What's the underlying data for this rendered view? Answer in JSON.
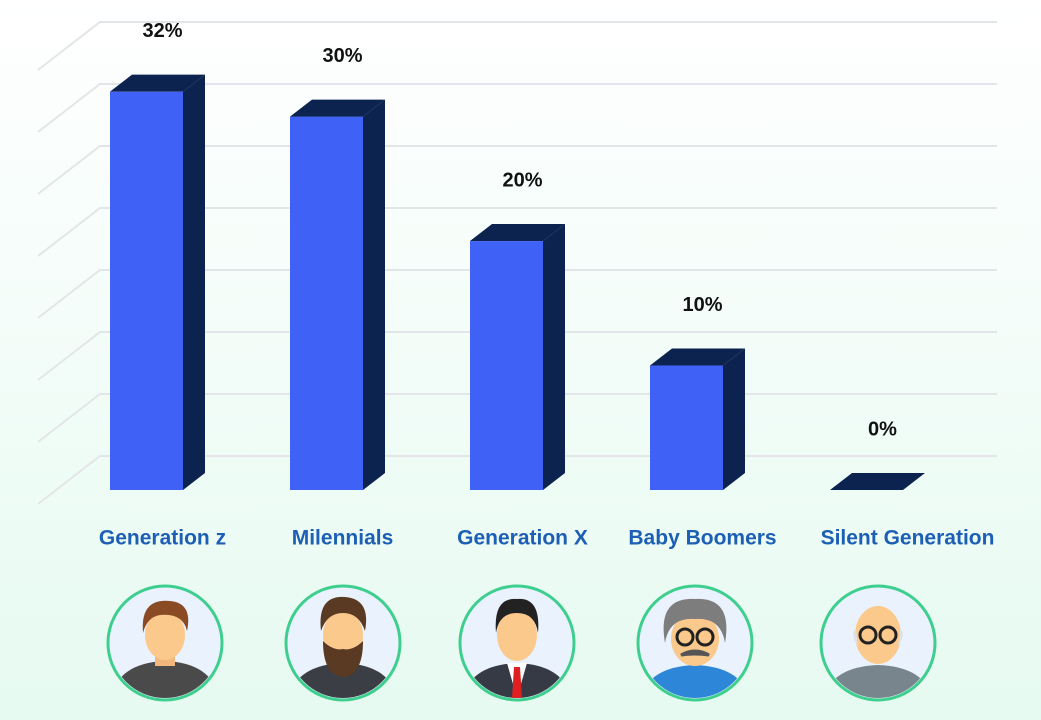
{
  "chart_data": {
    "type": "bar3d",
    "categories": [
      "Generation z",
      "Milennials",
      "Generation X",
      "Baby Boomers",
      "Silent Generation"
    ],
    "values": [
      32,
      30,
      20,
      10,
      0
    ],
    "value_labels": [
      "32%",
      "30%",
      "20%",
      "10%",
      "0%"
    ],
    "ylim": [
      0,
      38
    ],
    "color": "#4061f6",
    "side_color": "#0c2350",
    "label_color": "#1c5fb5"
  }
}
